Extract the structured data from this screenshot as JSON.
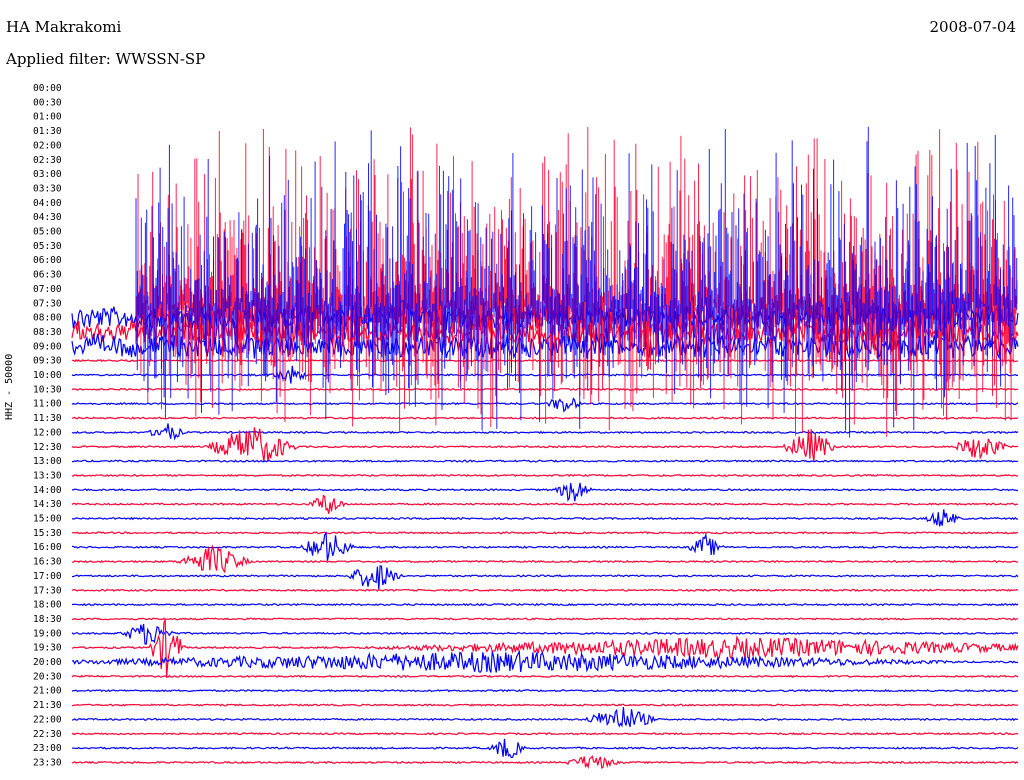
{
  "header": {
    "station": "HA Makrakomi",
    "date": "2008-07-04",
    "filter": "Applied filter: WWSSN-SP"
  },
  "chart_data": {
    "type": "line",
    "title": "HA Makrakomi",
    "ylabel": "HHZ - 50000",
    "colors": [
      "#0000ff",
      "#ff0033"
    ],
    "row_labels": [
      "00:00",
      "00:30",
      "01:00",
      "01:30",
      "02:00",
      "02:30",
      "03:00",
      "03:30",
      "04:00",
      "04:30",
      "05:00",
      "05:30",
      "06:00",
      "06:30",
      "07:00",
      "07:30",
      "08:00",
      "08:30",
      "09:00",
      "09:30",
      "10:00",
      "10:30",
      "11:00",
      "11:30",
      "12:00",
      "12:30",
      "13:00",
      "13:30",
      "14:00",
      "14:30",
      "15:00",
      "15:30",
      "16:00",
      "16:30",
      "17:00",
      "17:30",
      "18:00",
      "18:30",
      "19:00",
      "19:30",
      "20:00",
      "20:30",
      "21:00",
      "21:30",
      "22:00",
      "22:30",
      "23:00",
      "23:30"
    ],
    "first_trace_row": 16,
    "noisy_rows": [
      16,
      17,
      18
    ],
    "events": [
      {
        "row": 20,
        "x": 0.23,
        "amp": 10,
        "w": 0.02
      },
      {
        "row": 22,
        "x": 0.52,
        "amp": 9,
        "w": 0.02
      },
      {
        "row": 24,
        "x": 0.1,
        "amp": 10,
        "w": 0.02
      },
      {
        "row": 25,
        "x": 0.19,
        "amp": 22,
        "w": 0.05
      },
      {
        "row": 25,
        "x": 0.78,
        "amp": 18,
        "w": 0.03
      },
      {
        "row": 25,
        "x": 0.96,
        "amp": 14,
        "w": 0.03
      },
      {
        "row": 28,
        "x": 0.53,
        "amp": 14,
        "w": 0.02
      },
      {
        "row": 29,
        "x": 0.27,
        "amp": 12,
        "w": 0.02
      },
      {
        "row": 30,
        "x": 0.92,
        "amp": 10,
        "w": 0.02
      },
      {
        "row": 32,
        "x": 0.27,
        "amp": 16,
        "w": 0.03
      },
      {
        "row": 32,
        "x": 0.67,
        "amp": 12,
        "w": 0.02
      },
      {
        "row": 33,
        "x": 0.15,
        "amp": 16,
        "w": 0.04
      },
      {
        "row": 34,
        "x": 0.32,
        "amp": 16,
        "w": 0.03
      },
      {
        "row": 38,
        "x": 0.08,
        "amp": 12,
        "w": 0.03
      },
      {
        "row": 39,
        "x": 0.1,
        "amp": 30,
        "w": 0.02
      },
      {
        "row": 39,
        "x": 0.7,
        "amp": 10,
        "w": 0.4
      },
      {
        "row": 40,
        "x": 0.45,
        "amp": 10,
        "w": 0.5
      },
      {
        "row": 44,
        "x": 0.58,
        "amp": 14,
        "w": 0.04
      },
      {
        "row": 46,
        "x": 0.46,
        "amp": 12,
        "w": 0.02
      },
      {
        "row": 47,
        "x": 0.55,
        "amp": 8,
        "w": 0.03
      }
    ]
  }
}
